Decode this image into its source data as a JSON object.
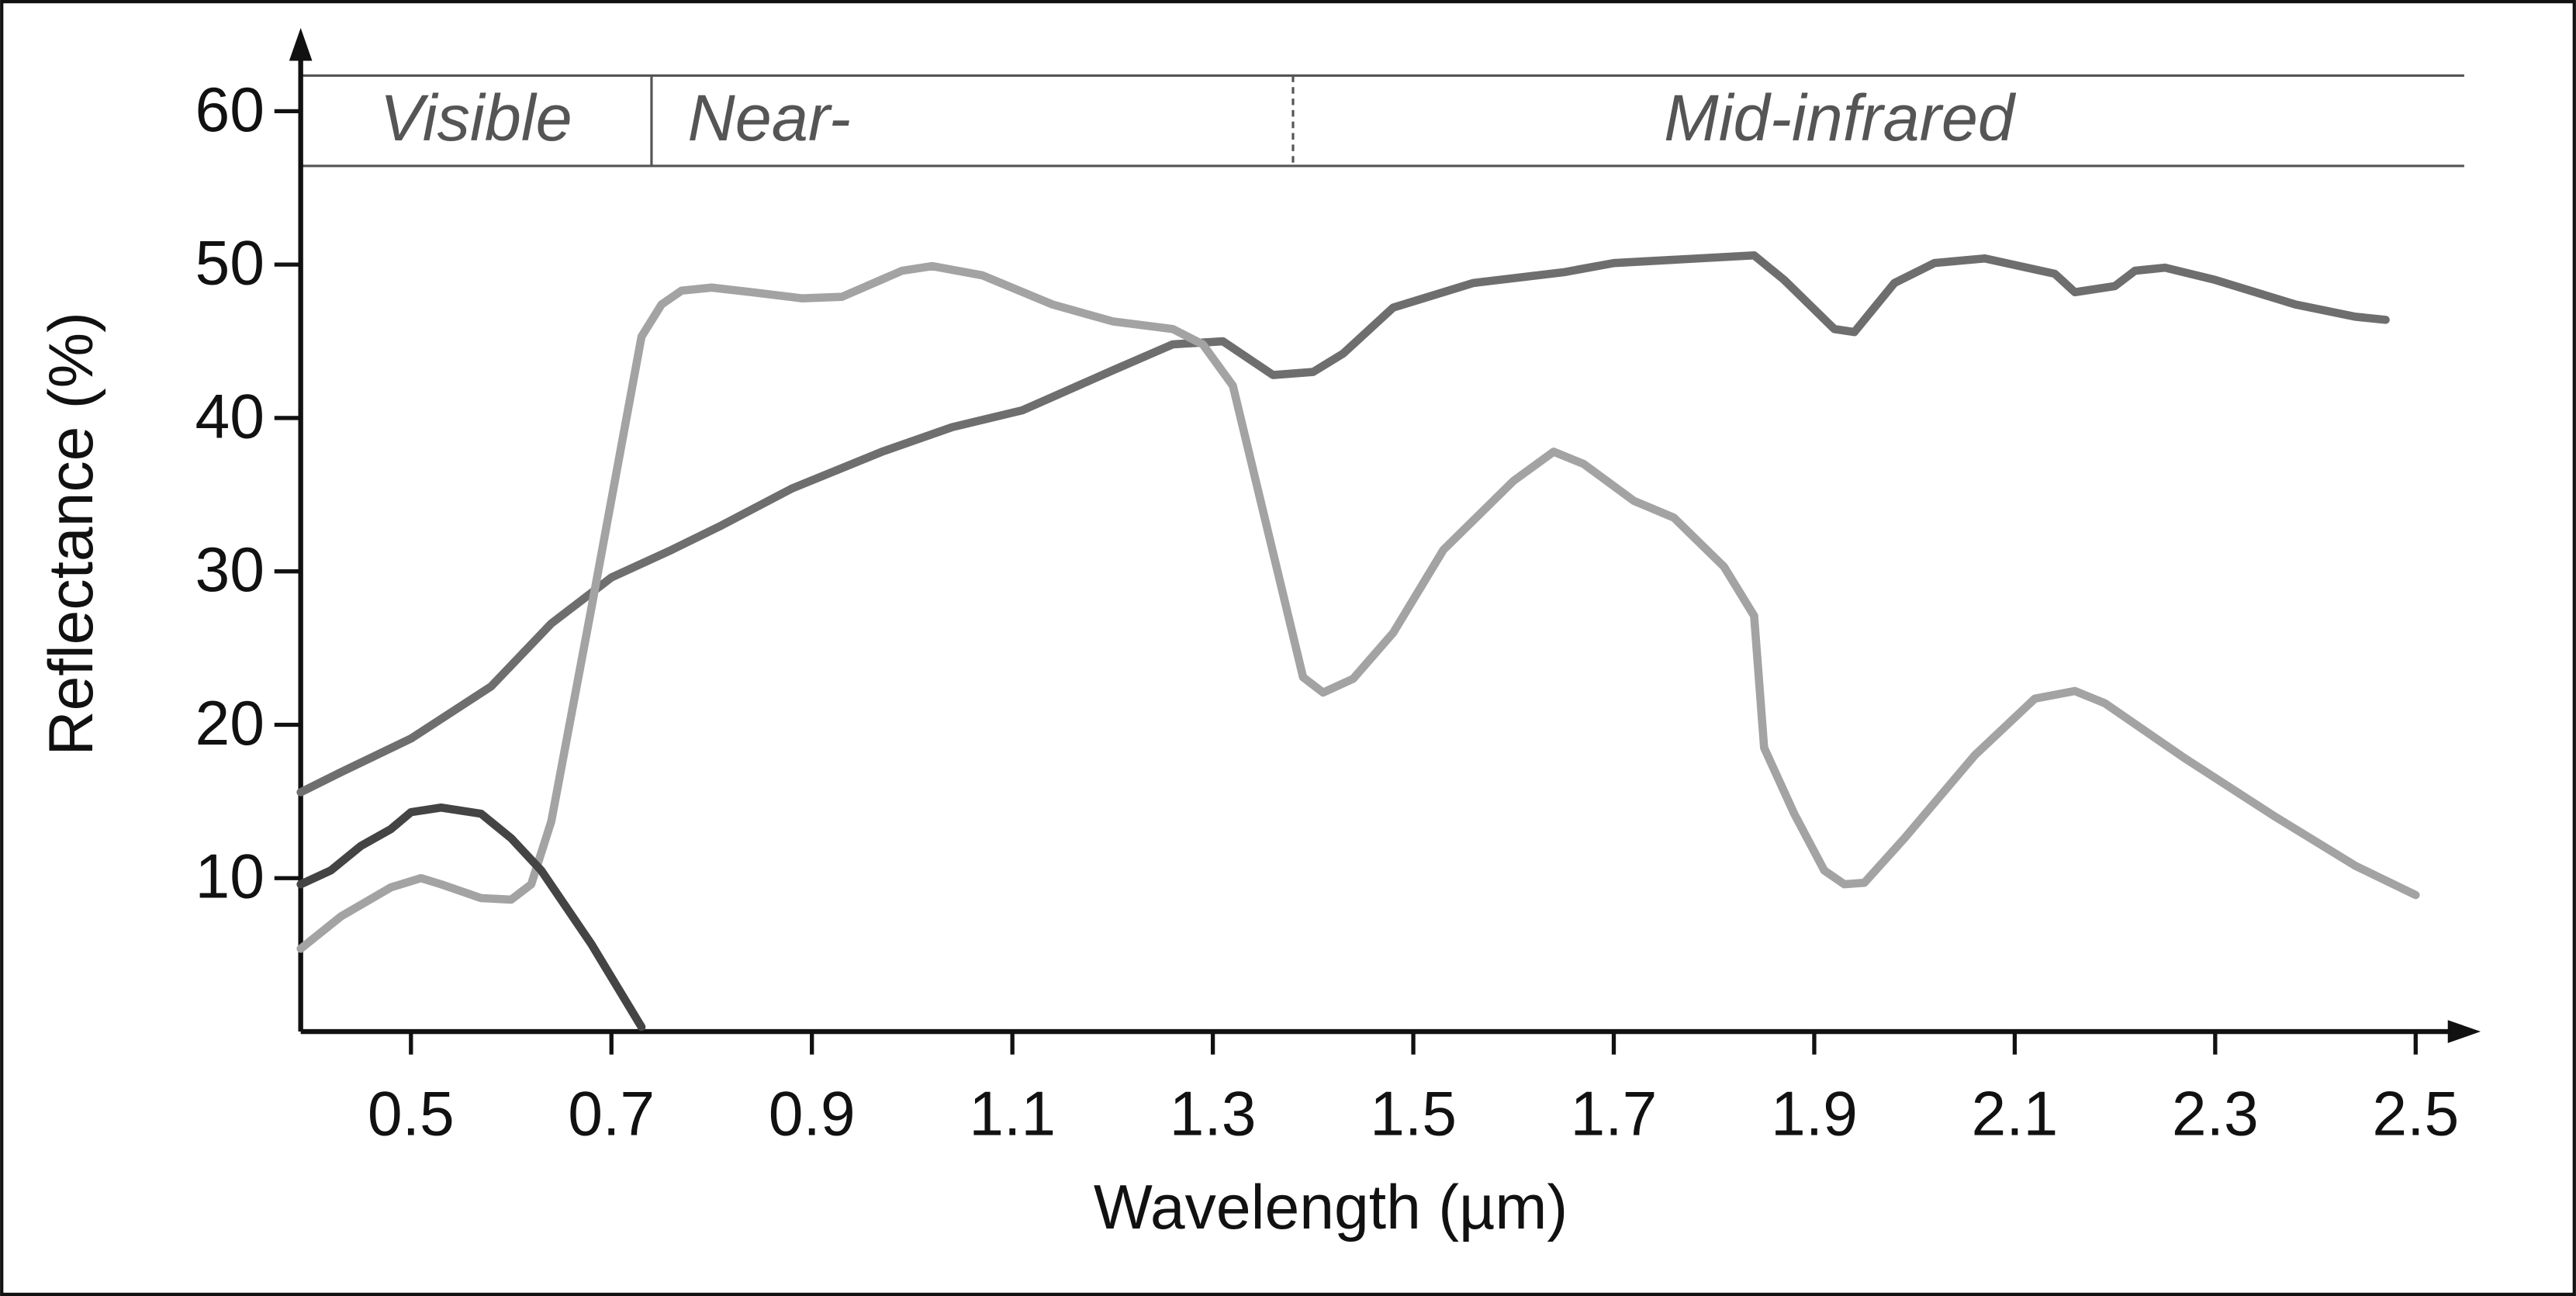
{
  "chart_data": {
    "type": "line",
    "xlabel": "Wavelength (µm)",
    "ylabel": "Reflectance (%)",
    "xlim": [
      0.39,
      2.555
    ],
    "ylim": [
      0,
      65
    ],
    "xticks": [
      0.5,
      0.7,
      0.9,
      1.1,
      1.3,
      1.5,
      1.7,
      1.9,
      2.1,
      2.3,
      2.5
    ],
    "yticks": [
      10,
      20,
      30,
      40,
      50,
      60
    ],
    "regions": {
      "labels": [
        "Visible",
        "Near-",
        "Mid-infrared"
      ],
      "dividers": [
        0.74,
        1.38
      ],
      "divider_styles": [
        "solid",
        "dashed"
      ]
    },
    "series": [
      {
        "color": "#6e6e6e",
        "x": [
          0.39,
          0.43,
          0.5,
          0.58,
          0.64,
          0.7,
          0.76,
          0.81,
          0.88,
          0.97,
          1.04,
          1.11,
          1.2,
          1.26,
          1.31,
          1.36,
          1.4,
          1.43,
          1.48,
          1.56,
          1.65,
          1.7,
          1.84,
          1.87,
          1.92,
          1.94,
          1.98,
          2.02,
          2.07,
          2.14,
          2.16,
          2.2,
          2.22,
          2.25,
          2.3,
          2.38,
          2.44,
          2.47
        ],
        "values": [
          15.6,
          16.9,
          19.1,
          22.5,
          26.6,
          29.6,
          31.4,
          33.0,
          35.4,
          37.8,
          39.4,
          40.5,
          43.1,
          44.8,
          45.0,
          42.8,
          43.0,
          44.2,
          47.2,
          48.8,
          49.5,
          50.1,
          50.6,
          49.0,
          45.8,
          45.6,
          48.8,
          50.1,
          50.4,
          49.4,
          48.2,
          48.6,
          49.6,
          49.8,
          49.0,
          47.4,
          46.6,
          46.4
        ]
      },
      {
        "color": "#a3a3a3",
        "x": [
          0.39,
          0.43,
          0.48,
          0.51,
          0.53,
          0.57,
          0.6,
          0.62,
          0.64,
          0.68,
          0.73,
          0.75,
          0.77,
          0.8,
          0.84,
          0.89,
          0.93,
          0.99,
          1.02,
          1.07,
          1.14,
          1.2,
          1.26,
          1.29,
          1.32,
          1.39,
          1.41,
          1.44,
          1.48,
          1.53,
          1.6,
          1.64,
          1.67,
          1.72,
          1.76,
          1.81,
          1.84,
          1.85,
          1.88,
          1.91,
          1.93,
          1.95,
          1.99,
          2.06,
          2.12,
          2.16,
          2.19,
          2.27,
          2.36,
          2.44,
          2.5
        ],
        "values": [
          5.4,
          7.5,
          9.4,
          10.0,
          9.6,
          8.7,
          8.6,
          9.6,
          13.7,
          27.6,
          45.3,
          47.4,
          48.3,
          48.5,
          48.2,
          47.8,
          47.9,
          49.6,
          49.9,
          49.3,
          47.4,
          46.3,
          45.8,
          44.8,
          42.1,
          23.1,
          22.1,
          23.0,
          26.0,
          31.4,
          35.9,
          37.8,
          37.0,
          34.6,
          33.5,
          30.3,
          27.1,
          18.5,
          14.2,
          10.5,
          9.6,
          9.7,
          12.6,
          18.0,
          21.7,
          22.2,
          21.4,
          17.8,
          14.0,
          10.8,
          8.9
        ]
      },
      {
        "color": "#444444",
        "x": [
          0.39,
          0.42,
          0.45,
          0.48,
          0.5,
          0.53,
          0.57,
          0.6,
          0.63,
          0.68,
          0.73
        ],
        "values": [
          9.6,
          10.5,
          12.1,
          13.2,
          14.3,
          14.6,
          14.2,
          12.6,
          10.5,
          5.7,
          0.3
        ]
      }
    ]
  }
}
